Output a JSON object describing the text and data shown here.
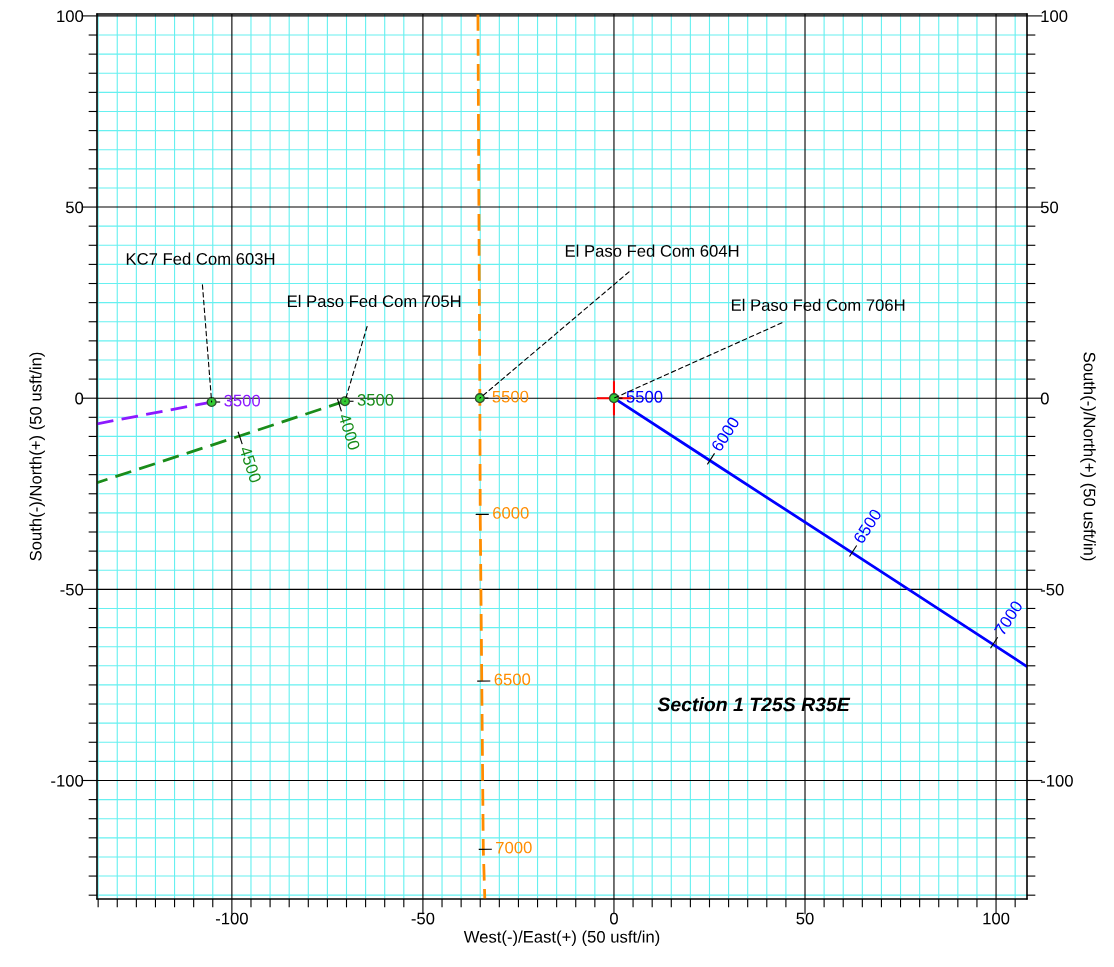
{
  "chart_data": {
    "type": "line",
    "xlabel": "West(-)/East(+) (50 usft/in)",
    "ylabel": "South(-)/North(+) (50 usft/in)",
    "y2label": "South(-)/North(+) (50 usft/in)",
    "xlim": [
      -135.3,
      108.1
    ],
    "ylim": [
      -131,
      100.5
    ],
    "y2lim": [
      -131,
      100.5
    ],
    "xticks": [
      {
        "value": -135,
        "label": null
      },
      {
        "value": -130,
        "label": null
      },
      {
        "value": -125,
        "label": null
      },
      {
        "value": -120,
        "label": null
      },
      {
        "value": -115,
        "label": null
      },
      {
        "value": -110,
        "label": null
      },
      {
        "value": -105,
        "label": null
      },
      -100,
      {
        "value": -95,
        "label": null
      },
      {
        "value": -90,
        "label": null
      },
      {
        "value": -85,
        "label": null
      },
      {
        "value": -80,
        "label": null
      },
      {
        "value": -75,
        "label": null
      },
      {
        "value": -70,
        "label": null
      },
      {
        "value": -65,
        "label": null
      },
      {
        "value": -60,
        "label": null
      },
      {
        "value": -55,
        "label": null
      },
      -50,
      {
        "value": -45,
        "label": null
      },
      {
        "value": -40,
        "label": null
      },
      {
        "value": -35,
        "label": null
      },
      {
        "value": -30,
        "label": null
      },
      {
        "value": -25,
        "label": null
      },
      {
        "value": -20,
        "label": null
      },
      {
        "value": -15,
        "label": null
      },
      {
        "value": -10,
        "label": null
      },
      {
        "value": -5,
        "label": null
      },
      0,
      {
        "value": 5,
        "label": null
      },
      {
        "value": 10,
        "label": null
      },
      {
        "value": 15,
        "label": null
      },
      {
        "value": 20,
        "label": null
      },
      {
        "value": 25,
        "label": null
      },
      {
        "value": 30,
        "label": null
      },
      {
        "value": 35,
        "label": null
      },
      {
        "value": 40,
        "label": null
      },
      {
        "value": 45,
        "label": null
      },
      50,
      {
        "value": 55,
        "label": null
      },
      {
        "value": 60,
        "label": null
      },
      {
        "value": 65,
        "label": null
      },
      {
        "value": 70,
        "label": null
      },
      {
        "value": 75,
        "label": null
      },
      {
        "value": 80,
        "label": null
      },
      {
        "value": 85,
        "label": null
      },
      {
        "value": 90,
        "label": null
      },
      {
        "value": 95,
        "label": null
      },
      100,
      {
        "value": 105,
        "label": null
      }
    ],
    "yticks": [
      {
        "value": -130,
        "label": null
      },
      {
        "value": -125,
        "label": null
      },
      {
        "value": -120,
        "label": null
      },
      {
        "value": -115,
        "label": null
      },
      {
        "value": -110,
        "label": null
      },
      {
        "value": -105,
        "label": null
      },
      -100,
      {
        "value": -95,
        "label": null
      },
      {
        "value": -90,
        "label": null
      },
      {
        "value": -85,
        "label": null
      },
      {
        "value": -80,
        "label": null
      },
      {
        "value": -75,
        "label": null
      },
      {
        "value": -70,
        "label": null
      },
      {
        "value": -65,
        "label": null
      },
      {
        "value": -60,
        "label": null
      },
      {
        "value": -55,
        "label": null
      },
      -50,
      {
        "value": -45,
        "label": null
      },
      {
        "value": -40,
        "label": null
      },
      {
        "value": -35,
        "label": null
      },
      {
        "value": -30,
        "label": null
      },
      {
        "value": -25,
        "label": null
      },
      {
        "value": -20,
        "label": null
      },
      {
        "value": -15,
        "label": null
      },
      {
        "value": -10,
        "label": null
      },
      {
        "value": -5,
        "label": null
      },
      0,
      {
        "value": 5,
        "label": null
      },
      {
        "value": 10,
        "label": null
      },
      {
        "value": 15,
        "label": null
      },
      {
        "value": 20,
        "label": null
      },
      {
        "value": 25,
        "label": null
      },
      {
        "value": 30,
        "label": null
      },
      {
        "value": 35,
        "label": null
      },
      {
        "value": 40,
        "label": null
      },
      {
        "value": 45,
        "label": null
      },
      50,
      {
        "value": 55,
        "label": null
      },
      {
        "value": 60,
        "label": null
      },
      {
        "value": 65,
        "label": null
      },
      {
        "value": 70,
        "label": null
      },
      {
        "value": 75,
        "label": null
      },
      {
        "value": 80,
        "label": null
      },
      {
        "value": 85,
        "label": null
      },
      {
        "value": 90,
        "label": null
      },
      {
        "value": 95,
        "label": null
      },
      100
    ],
    "y2ticks": [
      {
        "value": -130,
        "label": null
      },
      {
        "value": -125,
        "label": null
      },
      {
        "value": -120,
        "label": null
      },
      {
        "value": -115,
        "label": null
      },
      {
        "value": -110,
        "label": null
      },
      {
        "value": -105,
        "label": null
      },
      -100,
      {
        "value": -95,
        "label": null
      },
      {
        "value": -90,
        "label": null
      },
      {
        "value": -85,
        "label": null
      },
      {
        "value": -80,
        "label": null
      },
      {
        "value": -75,
        "label": null
      },
      {
        "value": -70,
        "label": null
      },
      {
        "value": -65,
        "label": null
      },
      {
        "value": -60,
        "label": null
      },
      {
        "value": -55,
        "label": null
      },
      -50,
      {
        "value": -45,
        "label": null
      },
      {
        "value": -40,
        "label": null
      },
      {
        "value": -35,
        "label": null
      },
      {
        "value": -30,
        "label": null
      },
      {
        "value": -25,
        "label": null
      },
      {
        "value": -20,
        "label": null
      },
      {
        "value": -15,
        "label": null
      },
      {
        "value": -10,
        "label": null
      },
      {
        "value": -5,
        "label": null
      },
      0,
      {
        "value": 5,
        "label": null
      },
      {
        "value": 10,
        "label": null
      },
      {
        "value": 15,
        "label": null
      },
      {
        "value": 20,
        "label": null
      },
      {
        "value": 25,
        "label": null
      },
      {
        "value": 30,
        "label": null
      },
      {
        "value": 35,
        "label": null
      },
      {
        "value": 40,
        "label": null
      },
      {
        "value": 45,
        "label": null
      },
      50,
      {
        "value": 55,
        "label": null
      },
      {
        "value": 60,
        "label": null
      },
      {
        "value": 65,
        "label": null
      },
      {
        "value": 70,
        "label": null
      },
      {
        "value": 75,
        "label": null
      },
      {
        "value": 80,
        "label": null
      },
      {
        "value": 85,
        "label": null
      },
      {
        "value": 90,
        "label": null
      },
      {
        "value": 95,
        "label": null
      },
      100
    ],
    "grid": true,
    "legend": false,
    "series": [
      {
        "type": "line",
        "color": "#8c1aff",
        "line_style": "dashed",
        "x": [
          -105.3,
          -135.3
        ],
        "values": [
          -1,
          -6.7
        ]
      },
      {
        "type": "line",
        "color": "#1a8c1a",
        "line_style": "dashed",
        "x": [
          -70.4,
          -72,
          -98,
          -135.3
        ],
        "values": [
          -0.8,
          -1.3,
          -9.9,
          -22.1
        ]
      },
      {
        "type": "line",
        "color": "#ff8c00",
        "line_style": "dashed",
        "x": [
          -35.6,
          -35.1,
          -35,
          -34.6,
          -34.2,
          -33.8
        ],
        "values": [
          100.5,
          0,
          -30.4,
          -74,
          -118,
          -131
        ]
      },
      {
        "type": "line",
        "color": "#0000ff",
        "line_style": "solid",
        "x": [
          0,
          25.1,
          62.3,
          99.2,
          108.1
        ],
        "values": [
          0,
          -16.3,
          -40.4,
          -64.4,
          -70.2
        ]
      },
      {
        "type": "scatter",
        "color": "#ff0000",
        "marker": "cross",
        "x": [
          0
        ],
        "values": [
          0
        ]
      },
      {
        "type": "scatter",
        "color": "#33cc33",
        "marker": "circle",
        "x": [
          -105.3,
          -70.4,
          -35.1,
          0
        ],
        "values": [
          -1,
          -0.8,
          0,
          0
        ]
      }
    ],
    "annotations": [
      {
        "text": "KC7 Fed Com 603H",
        "x": -105.3,
        "y": -1
      },
      {
        "text": "El Paso Fed Com 705H",
        "x": -70.4,
        "y": -0.8
      },
      {
        "text": "El Paso Fed Com 604H",
        "x": -35.1,
        "y": 0
      },
      {
        "text": "El Paso Fed Com 706H",
        "x": 0,
        "y": 0
      },
      {
        "text": "3500",
        "x": -105.3,
        "y": -1
      },
      {
        "text": "3500",
        "x": -70.4,
        "y": -0.8
      },
      {
        "text": "4000",
        "x": -72,
        "y": -1.3
      },
      {
        "text": "4500",
        "x": -98,
        "y": -9.9
      },
      {
        "text": "5500",
        "x": -35.1,
        "y": 0
      },
      {
        "text": "6000",
        "x": -35,
        "y": -30.4
      },
      {
        "text": "6500",
        "x": -34.6,
        "y": -74
      },
      {
        "text": "7000",
        "x": -34.2,
        "y": -118
      },
      {
        "text": "5500",
        "x": 0,
        "y": 0
      },
      {
        "text": "6000",
        "x": 25.1,
        "y": -16.3
      },
      {
        "text": "6500",
        "x": 62.3,
        "y": -40.4
      },
      {
        "text": "7000",
        "x": 99.2,
        "y": -64.4
      },
      "Section 1 T25S R35E"
    ]
  }
}
